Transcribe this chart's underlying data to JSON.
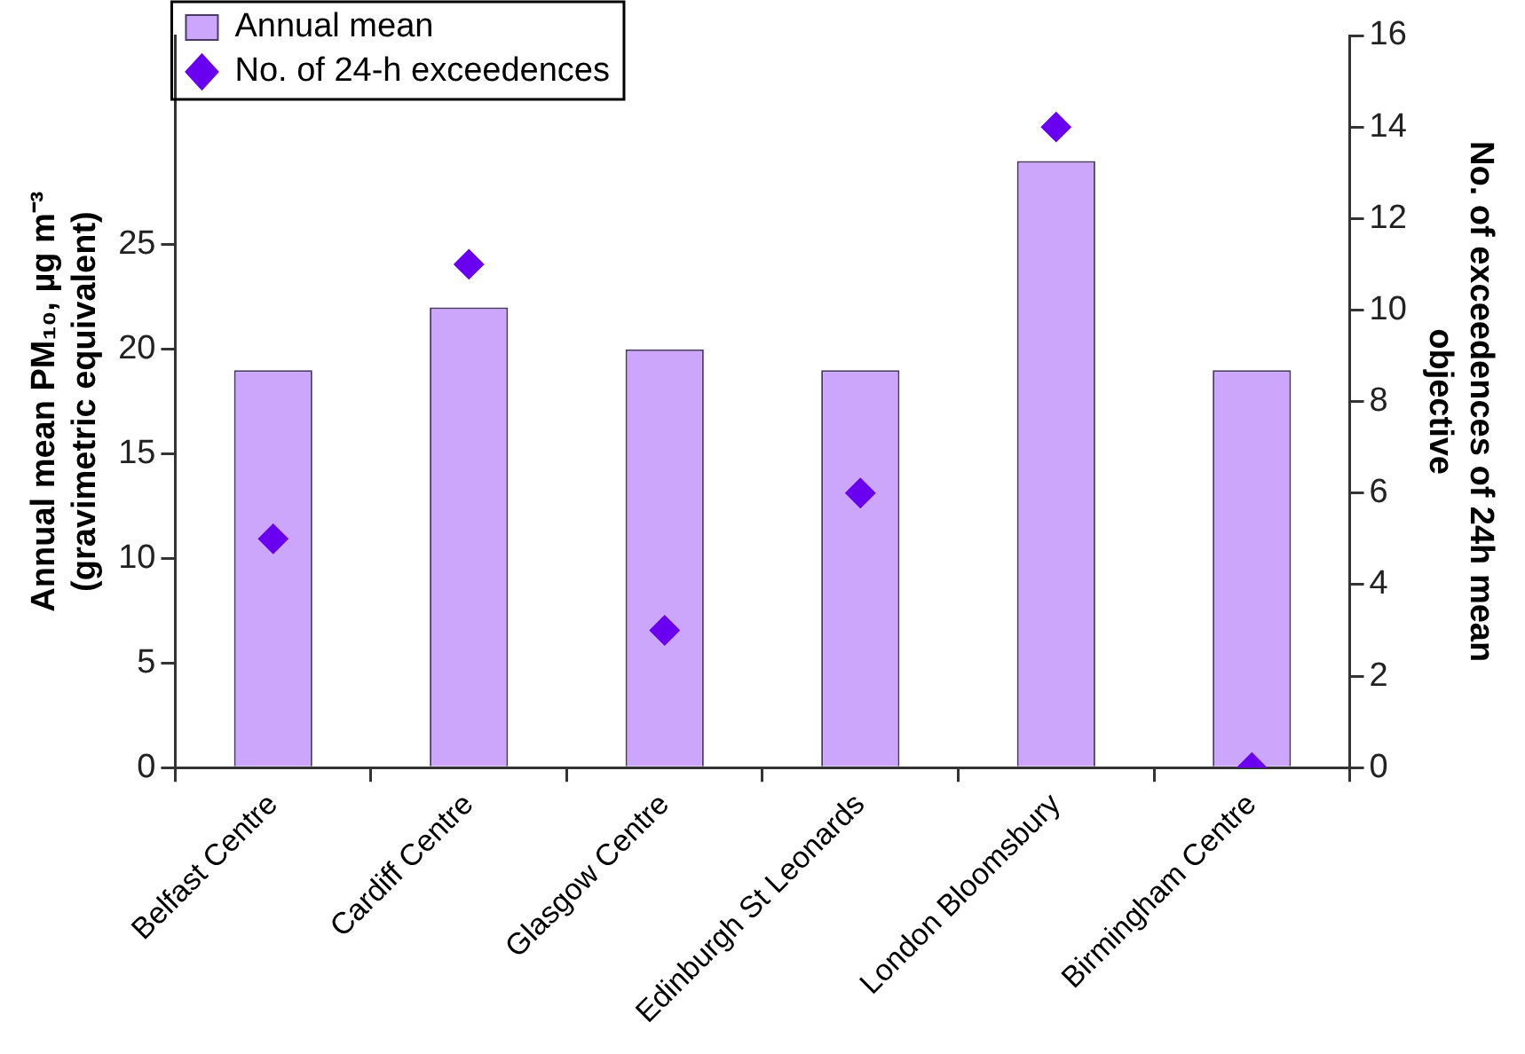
{
  "chart_data": {
    "type": "bar",
    "categories": [
      "Belfast Centre",
      "Cardiff Centre",
      "Glasgow Centre",
      "Edinburgh St Leonards",
      "London Bloomsbury",
      "Birmingham Centre"
    ],
    "series": [
      {
        "name": "Annual mean",
        "type": "bar",
        "color": "#cca6fa",
        "values": [
          19,
          22,
          20,
          19,
          29,
          19
        ]
      },
      {
        "name": "No. of 24-h exceedences",
        "type": "scatter",
        "axis": "y2",
        "color": "#6a00f0",
        "values": [
          5,
          11,
          3,
          6,
          14,
          0
        ]
      }
    ],
    "ylabel": "Annual mean PM₁₀, µg m⁻³\n(gravimetric equivalent)",
    "y2label": "No. of exceedences of 24h mean\nobjective",
    "ylim": [
      0,
      35
    ],
    "yticks": [
      0,
      5,
      10,
      15,
      20,
      25
    ],
    "y2lim": [
      0,
      16
    ],
    "y2ticks": [
      0,
      2,
      4,
      6,
      8,
      10,
      12,
      14,
      16
    ],
    "grid": false,
    "legend": "top left",
    "marker": "diamond"
  }
}
